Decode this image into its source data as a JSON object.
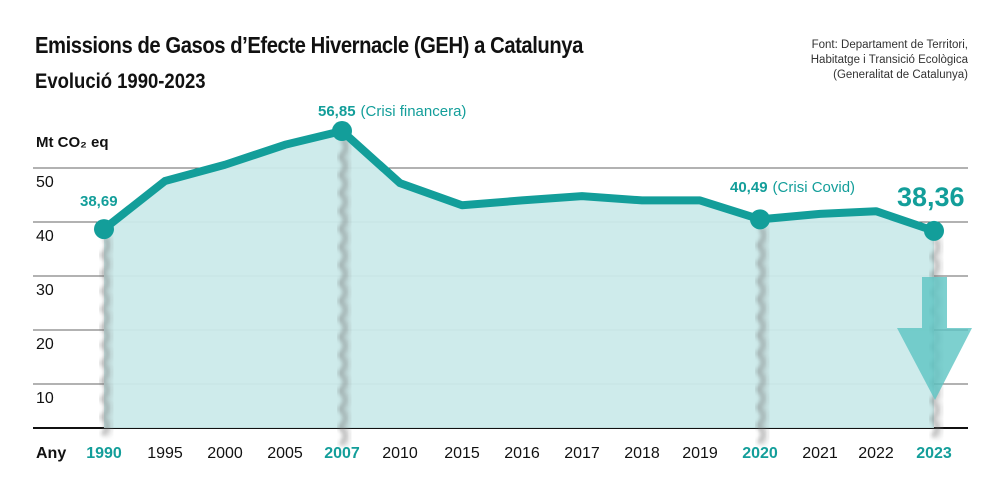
{
  "header": {
    "title": "Emissions de Gasos d’Efecte Hivernacle (GEH) a Catalunya",
    "subtitle": "Evolució 1990-2023",
    "source_lines": [
      "Font: Departament de Territori,",
      "Habitatge i Transició Ecològica",
      "(Generalitat de Catalunya)"
    ]
  },
  "colors": {
    "line": "#139e9a",
    "area": "#cbeaea",
    "highlight_text": "#139e9a",
    "grid": "#666666",
    "arrow": "#5cc4c3"
  },
  "chart_data": {
    "type": "area",
    "title": "Emissions de Gasos d’Efecte Hivernacle (GEH) a Catalunya",
    "subtitle": "Evolució 1990-2023",
    "xlabel": "Any",
    "ylabel": "Mt CO₂ eq",
    "ylim": [
      0,
      55
    ],
    "yticks": [
      10,
      20,
      30,
      40,
      50
    ],
    "grid": true,
    "categories": [
      "1990",
      "1995",
      "2000",
      "2005",
      "2007",
      "2010",
      "2015",
      "2016",
      "2017",
      "2018",
      "2019",
      "2020",
      "2021",
      "2022",
      "2023"
    ],
    "highlighted_categories": [
      "1990",
      "2007",
      "2020",
      "2023"
    ],
    "series": [
      {
        "name": "Emissions GEH (Mt CO₂ eq)",
        "values": [
          38.69,
          47.6,
          50.6,
          54.3,
          56.85,
          47.2,
          43.1,
          44.0,
          44.8,
          44.0,
          44.0,
          40.49,
          41.5,
          42.0,
          38.36
        ]
      }
    ],
    "annotations": [
      {
        "category": "1990",
        "value_label": "38,69",
        "note": ""
      },
      {
        "category": "2007",
        "value_label": "56,85",
        "note": "(Crisi financera)"
      },
      {
        "category": "2020",
        "value_label": "40,49",
        "note": "(Crisi Covid)"
      },
      {
        "category": "2023",
        "value_label": "38,36",
        "note": "",
        "trend": "down-arrow"
      }
    ]
  }
}
